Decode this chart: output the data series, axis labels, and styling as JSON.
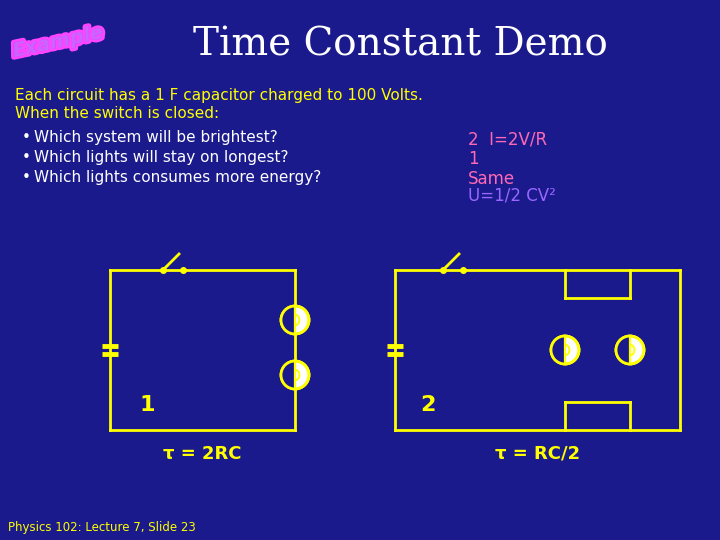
{
  "bg_color": "#1a1a8c",
  "title": "Time Constant Demo",
  "title_color": "#ffffff",
  "title_fontsize": 28,
  "body_text_color": "#ffff00",
  "body_line1": "Each circuit has a 1 F capacitor charged to 100 Volts.",
  "body_line2": "When the switch is closed:",
  "bullets": [
    "Which system will be brightest?",
    "Which lights will stay on longest?",
    "Which lights consumes more energy?"
  ],
  "answer1": "2  I=2V/R",
  "answer2": "1",
  "answer3": "Same",
  "answer4": "U=1/2 CV²",
  "answer_color1": "#ff69b4",
  "answer_color2": "#ff69b4",
  "answer_color3": "#ff69b4",
  "answer_color4": "#9966ff",
  "answer_fontsize": 12,
  "circuit_color": "#ffff00",
  "label1": "1",
  "label2": "2",
  "tau1": "τ = 2RC",
  "tau2": "τ = RC/2",
  "footer": "Physics 102: Lecture 7, Slide 23",
  "footer_color": "#ffff00",
  "bullet_fontsize": 11,
  "body_fontsize": 11,
  "fig_w": 7.2,
  "fig_h": 5.4,
  "dpi": 100
}
